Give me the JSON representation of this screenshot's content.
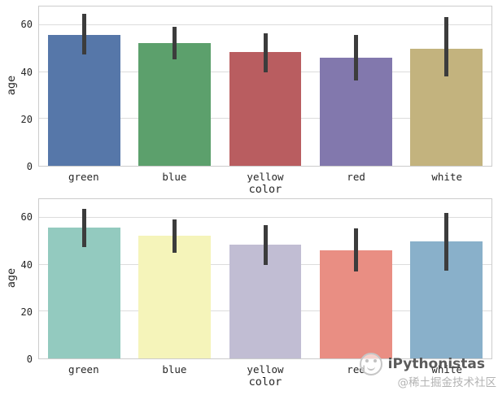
{
  "figure": {
    "background": "#ffffff",
    "grid_color": "#dcdcdc",
    "spine_color": "#cccccc",
    "errorbar_color": "#3c3c3c",
    "text_color": "#262626"
  },
  "chart_data": [
    {
      "type": "bar",
      "title": "",
      "xlabel": "color",
      "ylabel": "age",
      "categories": [
        "green",
        "blue",
        "yellow",
        "red",
        "white"
      ],
      "values": [
        56,
        52.5,
        48.5,
        46,
        50
      ],
      "errors": [
        [
          47.5,
          65
        ],
        [
          45.5,
          59.5
        ],
        [
          40,
          56.5
        ],
        [
          36.5,
          56
        ],
        [
          38,
          63.5
        ]
      ],
      "bar_colors": [
        "#5677a9",
        "#5ca06c",
        "#b95d60",
        "#8278ad",
        "#c3b37e"
      ],
      "yticks": [
        0,
        20,
        40,
        60
      ],
      "ylim": [
        0,
        68
      ],
      "grid": true,
      "legend": false
    },
    {
      "type": "bar",
      "title": "",
      "xlabel": "color",
      "ylabel": "age",
      "categories": [
        "green",
        "blue",
        "yellow",
        "red",
        "white"
      ],
      "values": [
        56,
        52.5,
        48.5,
        46,
        50
      ],
      "errors": [
        [
          47.5,
          64
        ],
        [
          45,
          59.5
        ],
        [
          40,
          57
        ],
        [
          37,
          55.5
        ],
        [
          37.5,
          62
        ]
      ],
      "bar_colors": [
        "#93cabf",
        "#f5f4ba",
        "#c1bdd3",
        "#e98e83",
        "#89b0ca"
      ],
      "yticks": [
        0,
        20,
        40,
        60
      ],
      "ylim": [
        0,
        68
      ],
      "grid": true,
      "legend": false
    }
  ],
  "watermark": {
    "brand": "iPythonistas",
    "handle": "@稀土掘金技术社区",
    "logo": "ipythonistas-snake-logo"
  }
}
